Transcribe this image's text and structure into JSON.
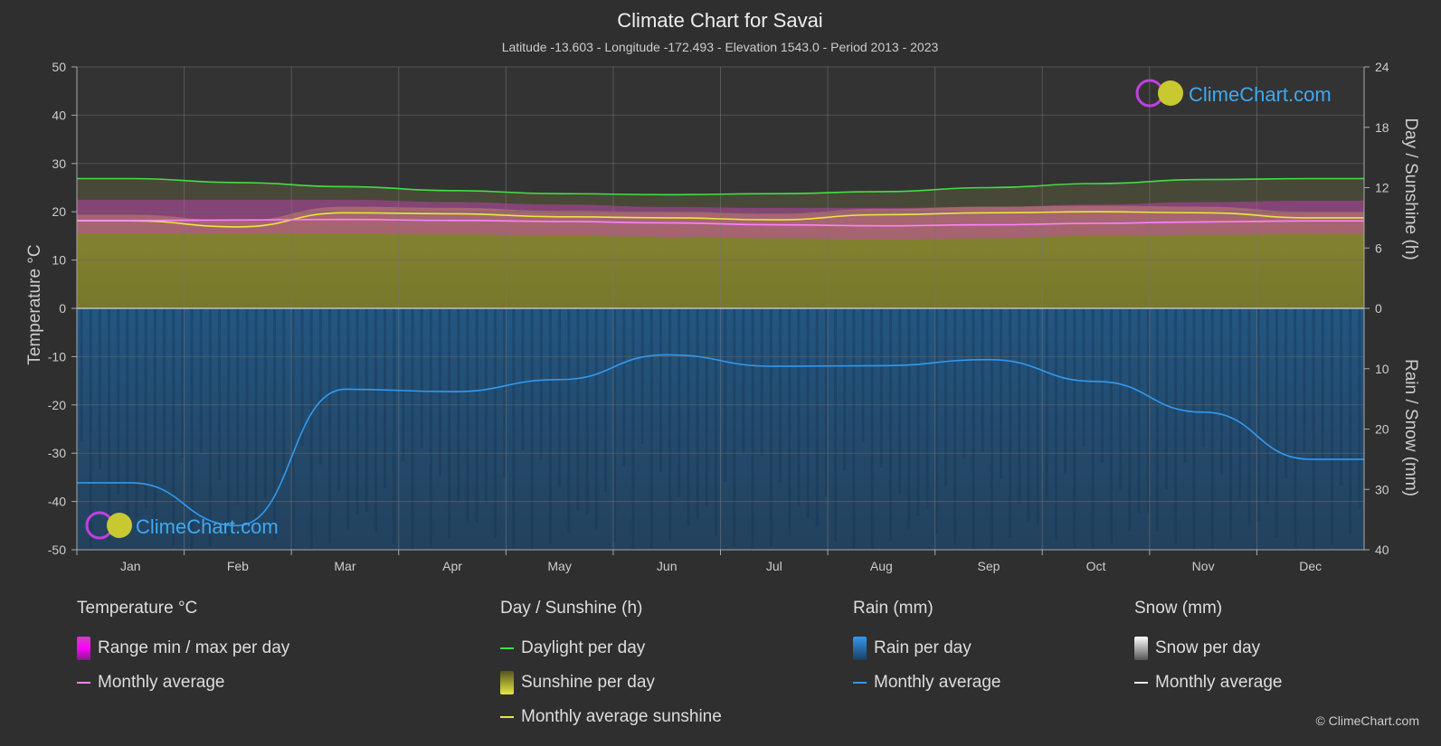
{
  "title": "Climate Chart for Savai",
  "subtitle": "Latitude -13.603 - Longitude -172.493 - Elevation 1543.0 - Period 2013 - 2023",
  "logo_text": "ClimeChart.com",
  "copyright": "© ClimeChart.com",
  "colors": {
    "background": "#2f2f2f",
    "daylight": "#44dd44",
    "sunshine_fill": "#8c8c30",
    "sunshine_avg": "#e8e840",
    "temp_range": "#d040c0",
    "temp_avg": "#ff80ff",
    "rain_fill": "#1f5f95",
    "rain_avg": "#3399ee"
  },
  "chart_data": {
    "type": "area",
    "categories": [
      "Jan",
      "Feb",
      "Mar",
      "Apr",
      "May",
      "Jun",
      "Jul",
      "Aug",
      "Sep",
      "Oct",
      "Nov",
      "Dec"
    ],
    "left_axis": {
      "title": "Temperature °C",
      "range": [
        -50,
        50
      ],
      "ticks": [
        50,
        40,
        30,
        20,
        10,
        0,
        -10,
        -20,
        -30,
        -40,
        -50
      ]
    },
    "right_axis_top": {
      "title": "Day / Sunshine (h)",
      "range": [
        0,
        24
      ],
      "ticks": [
        24,
        18,
        12,
        6,
        0
      ]
    },
    "right_axis_bottom": {
      "title": "Rain / Snow (mm)",
      "range": [
        0,
        40
      ],
      "ticks": [
        0,
        10,
        20,
        30,
        40
      ]
    },
    "grid": true,
    "series": [
      {
        "name": "Daylight per day",
        "axis": "sunshine",
        "values": [
          12.9,
          12.5,
          12.1,
          11.7,
          11.4,
          11.3,
          11.4,
          11.6,
          12.0,
          12.4,
          12.8,
          12.9
        ]
      },
      {
        "name": "Monthly average sunshine",
        "axis": "sunshine",
        "values": [
          8.7,
          8.1,
          9.5,
          9.4,
          9.1,
          9.0,
          8.8,
          9.3,
          9.5,
          9.6,
          9.5,
          9.0
        ]
      },
      {
        "name": "Temperature monthly average",
        "axis": "temperature",
        "values": [
          18.2,
          18.3,
          18.4,
          18.2,
          18.0,
          17.7,
          17.3,
          17.1,
          17.3,
          17.6,
          17.9,
          18.1
        ]
      },
      {
        "name": "Temperature max per day",
        "axis": "temperature",
        "values": [
          22.5,
          22.5,
          22.5,
          22.0,
          21.5,
          21.0,
          20.8,
          20.8,
          21.0,
          21.5,
          22.0,
          22.3
        ]
      },
      {
        "name": "Temperature min per day",
        "axis": "temperature",
        "values": [
          15.5,
          15.5,
          15.5,
          15.3,
          15.0,
          14.8,
          14.5,
          14.2,
          14.5,
          15.0,
          15.2,
          15.4
        ]
      },
      {
        "name": "Rain monthly average",
        "axis": "rain",
        "values": [
          28.9,
          36.0,
          13.4,
          13.8,
          11.8,
          7.7,
          9.6,
          9.5,
          8.5,
          12.1,
          17.2,
          25.0
        ]
      },
      {
        "name": "Snow monthly average",
        "axis": "rain",
        "values": [
          0,
          0,
          0,
          0,
          0,
          0,
          0,
          0,
          0,
          0,
          0,
          0
        ]
      }
    ]
  },
  "legend": {
    "temperature": {
      "heading": "Temperature °C",
      "items": [
        "Range min / max per day",
        "Monthly average"
      ]
    },
    "sunshine": {
      "heading": "Day / Sunshine (h)",
      "items": [
        "Daylight per day",
        "Sunshine per day",
        "Monthly average sunshine"
      ]
    },
    "rain": {
      "heading": "Rain (mm)",
      "items": [
        "Rain per day",
        "Monthly average"
      ]
    },
    "snow": {
      "heading": "Snow (mm)",
      "items": [
        "Snow per day",
        "Monthly average"
      ]
    }
  }
}
